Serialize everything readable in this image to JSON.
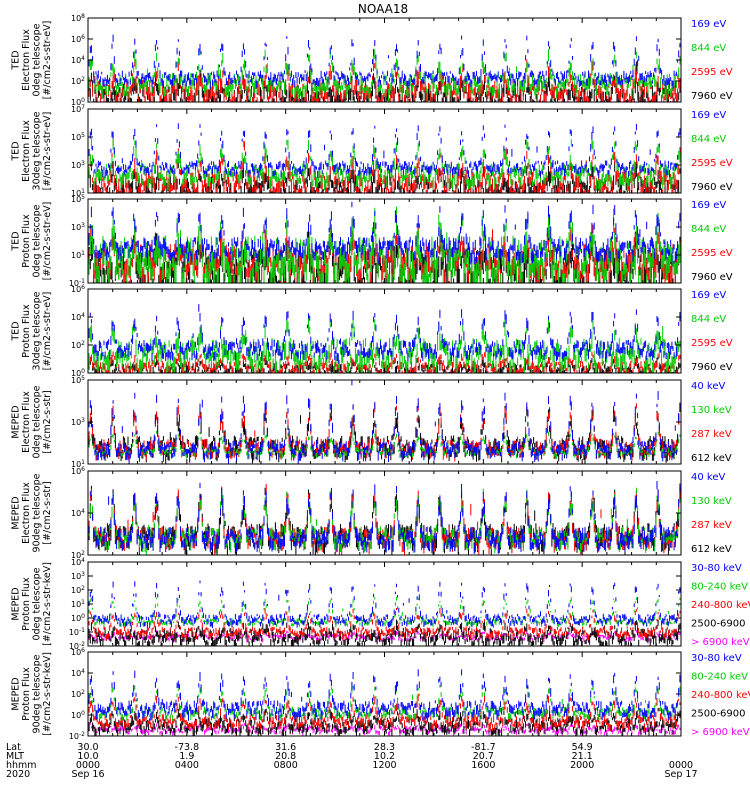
{
  "chart_data": {
    "type": "line",
    "title": "NOAA18",
    "panels": [
      {
        "ylabel": [
          "TED",
          "Electron Flux",
          "0deg telescope",
          "[#/cm2-s-str-eV]"
        ],
        "yticks": [
          "10^0",
          "10^2",
          "10^4",
          "10^6",
          "10^8"
        ],
        "log_range": [
          0,
          8
        ],
        "series": [
          {
            "name": "7960 eV",
            "color": "#000000",
            "base": 0.6,
            "spread": 1.0,
            "spikes": 1.6
          },
          {
            "name": "2595 eV",
            "color": "#ff0000",
            "base": 1.2,
            "spread": 1.0,
            "spikes": 2.0
          },
          {
            "name": "844 eV",
            "color": "#00cc00",
            "base": 2.0,
            "spread": 0.8,
            "spikes": 2.4
          },
          {
            "name": "169 eV",
            "color": "#0000ff",
            "base": 2.5,
            "spread": 0.5,
            "spikes": 3.5
          }
        ]
      },
      {
        "ylabel": [
          "TED",
          "Electron Flux",
          "30deg telescope",
          "[#/cm2-s-str-eV]"
        ],
        "yticks": [
          "10^1",
          "10^3",
          "10^5",
          "10^7"
        ],
        "log_range": [
          0,
          8
        ],
        "series": [
          {
            "name": "7960 eV",
            "color": "#000000",
            "base": 0.6,
            "spread": 1.0,
            "spikes": 1.6
          },
          {
            "name": "2595 eV",
            "color": "#ff0000",
            "base": 1.2,
            "spread": 1.0,
            "spikes": 2.2
          },
          {
            "name": "844 eV",
            "color": "#00cc00",
            "base": 2.0,
            "spread": 0.8,
            "spikes": 2.6
          },
          {
            "name": "169 eV",
            "color": "#0000ff",
            "base": 2.6,
            "spread": 0.5,
            "spikes": 3.6
          }
        ]
      },
      {
        "ylabel": [
          "TED",
          "Proton Flux",
          "0deg telescope",
          "[#/cm2-s-str-eV]"
        ],
        "yticks": [
          "10^-1",
          "10^1",
          "10^3",
          "10^5"
        ],
        "log_range": [
          -1,
          5
        ],
        "series": [
          {
            "name": "7960 eV",
            "color": "#000000",
            "base": 0.3,
            "spread": 1.2,
            "spikes": 1.6
          },
          {
            "name": "2595 eV",
            "color": "#ff0000",
            "base": 0.8,
            "spread": 1.0,
            "spikes": 1.6
          },
          {
            "name": "844 eV",
            "color": "#00cc00",
            "base": 1.0,
            "spread": 1.4,
            "spikes": 2.2
          },
          {
            "name": "169 eV",
            "color": "#0000ff",
            "base": 1.7,
            "spread": 0.6,
            "spikes": 2.4
          }
        ]
      },
      {
        "ylabel": [
          "TED",
          "Proton Flux",
          "30deg telescope",
          "[#/cm2-s-str-eV]"
        ],
        "yticks": [
          "10^0",
          "10^2",
          "10^4",
          "10^6"
        ],
        "log_range": [
          0,
          6
        ],
        "series": [
          {
            "name": "7960 eV",
            "color": "#000000",
            "base": 0.3,
            "spread": 0.4,
            "spikes": 0.6
          },
          {
            "name": "2595 eV",
            "color": "#ff0000",
            "base": 0.5,
            "spread": 0.4,
            "spikes": 0.8
          },
          {
            "name": "844 eV",
            "color": "#00cc00",
            "base": 1.6,
            "spread": 0.9,
            "spikes": 1.6
          },
          {
            "name": "169 eV",
            "color": "#0000ff",
            "base": 1.9,
            "spread": 0.5,
            "spikes": 2.3
          }
        ]
      },
      {
        "ylabel": [
          "MEPED",
          "Electron Flux",
          "0deg telescope",
          "[#/cm2-s-str]"
        ],
        "yticks": [
          "10^1",
          "10^3",
          "10^5"
        ],
        "log_range": [
          1,
          6
        ],
        "series": [
          {
            "name": "612 keV",
            "color": "#000000",
            "base": 2.2,
            "spread": 0.5,
            "spikes": 1.8
          },
          {
            "name": "287 keV",
            "color": "#ff0000",
            "base": 2.1,
            "spread": 0.4,
            "spikes": 2.2
          },
          {
            "name": "130 keV",
            "color": "#00cc00",
            "base": 1.8,
            "spread": 0.2,
            "spikes": 1.0
          },
          {
            "name": "40 keV",
            "color": "#0000ff",
            "base": 2.0,
            "spread": 0.4,
            "spikes": 3.0
          }
        ]
      },
      {
        "ylabel": [
          "MEPED",
          "Electron Flux",
          "90deg telescope",
          "[#/cm2-s-str]"
        ],
        "yticks": [
          "10^2",
          "10^4",
          "10^6"
        ],
        "log_range": [
          1,
          6
        ],
        "series": [
          {
            "name": "612 keV",
            "color": "#000000",
            "base": 2.3,
            "spread": 0.6,
            "spikes": 2.2
          },
          {
            "name": "287 keV",
            "color": "#ff0000",
            "base": 2.2,
            "spread": 0.5,
            "spikes": 2.4
          },
          {
            "name": "130 keV",
            "color": "#00cc00",
            "base": 2.2,
            "spread": 0.5,
            "spikes": 2.4
          },
          {
            "name": "40 keV",
            "color": "#0000ff",
            "base": 2.2,
            "spread": 0.5,
            "spikes": 2.6
          }
        ]
      },
      {
        "ylabel": [
          "MEPED",
          "Proton Flux",
          "0deg telescope",
          "[#/cm2-s-str-keV]"
        ],
        "yticks": [
          "10^-2",
          "10^-1",
          "10^0",
          "10^1",
          "10^2",
          "10^3",
          "10^4"
        ],
        "log_range": [
          -2,
          4
        ],
        "series": [
          {
            "name": "> 6900 keV",
            "color": "#ff00ff",
            "base": -1.3,
            "spread": 0.2,
            "spikes": 0.3
          },
          {
            "name": "2500-6900",
            "color": "#000000",
            "base": -1.2,
            "spread": 0.5,
            "spikes": 0.6
          },
          {
            "name": "240-800 keV",
            "color": "#ff0000",
            "base": -0.9,
            "spread": 0.3,
            "spikes": 1.4
          },
          {
            "name": "80-240 keV",
            "color": "#00cc00",
            "base": -0.2,
            "spread": 0.2,
            "spikes": 1.6
          },
          {
            "name": "30-80 keV",
            "color": "#0000ff",
            "base": 0.0,
            "spread": 0.3,
            "spikes": 2.4
          }
        ]
      },
      {
        "ylabel": [
          "MEPED",
          "Proton Flux",
          "90deg telescope",
          "[#/cm2-s-str-keV]"
        ],
        "yticks": [
          "10^-2",
          "10^0",
          "10^2",
          "10^4",
          "10^6"
        ],
        "log_range": [
          -2,
          6
        ],
        "series": [
          {
            "name": "> 6900 keV",
            "color": "#ff00ff",
            "base": -1.3,
            "spread": 0.3,
            "spikes": 0.3
          },
          {
            "name": "2500-6900",
            "color": "#000000",
            "base": -0.8,
            "spread": 0.6,
            "spikes": 1.0
          },
          {
            "name": "240-800 keV",
            "color": "#ff0000",
            "base": -0.4,
            "spread": 0.5,
            "spikes": 2.0
          },
          {
            "name": "80-240 keV",
            "color": "#00cc00",
            "base": 0.4,
            "spread": 0.4,
            "spikes": 2.2
          },
          {
            "name": "30-80 keV",
            "color": "#0000ff",
            "base": 0.8,
            "spread": 0.6,
            "spikes": 3.0
          }
        ]
      }
    ],
    "x_axis": {
      "row_labels": [
        "Lat",
        "MLT",
        "hhmm",
        "2020"
      ],
      "ticks": [
        {
          "lat": "30.0",
          "mlt": "10.0",
          "time": "0000",
          "date": "Sep 16"
        },
        {
          "lat": "-73.8",
          "mlt": "1.9",
          "time": "0400",
          "date": ""
        },
        {
          "lat": "31.6",
          "mlt": "20.8",
          "time": "0800",
          "date": ""
        },
        {
          "lat": "28.3",
          "mlt": "10.2",
          "time": "1200",
          "date": ""
        },
        {
          "lat": "-81.7",
          "mlt": "20.7",
          "time": "1600",
          "date": ""
        },
        {
          "lat": "54.9",
          "mlt": "21.1",
          "time": "2000",
          "date": ""
        },
        {
          "lat": "",
          "mlt": "",
          "time": "0000",
          "date": "Sep 17"
        }
      ]
    }
  }
}
